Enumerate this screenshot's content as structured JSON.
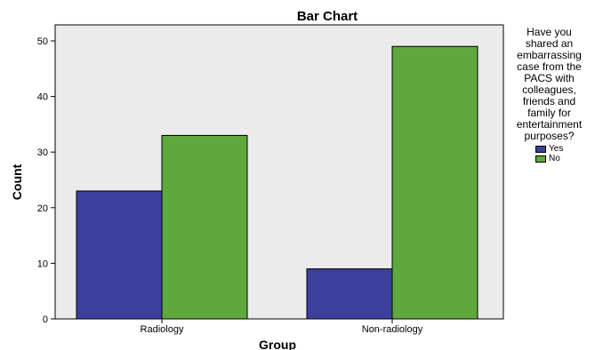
{
  "chart_data": {
    "type": "bar",
    "title": "Bar Chart",
    "xlabel": "Group",
    "ylabel": "Count",
    "categories": [
      "Radiology",
      "Non-radiology"
    ],
    "series": [
      {
        "name": "Yes",
        "values": [
          23,
          9
        ],
        "color": "#3c3f9c"
      },
      {
        "name": "No",
        "values": [
          33,
          49
        ],
        "color": "#5fa83e"
      }
    ],
    "ylim": [
      0,
      50
    ],
    "yticks": [
      0,
      10,
      20,
      30,
      40,
      50
    ],
    "grid": false,
    "legend": {
      "title": "Have you shared an embarrassing case from the PACS with colleagues, friends and family for entertainment purposes?",
      "title_lines": [
        "Have you",
        "shared an",
        "embarrassing",
        "case from the",
        "PACS with",
        "colleagues,",
        "friends and",
        "family for",
        "entertainment",
        "purposes?"
      ],
      "placement": "right"
    },
    "plot_background": "#ebebeb"
  }
}
